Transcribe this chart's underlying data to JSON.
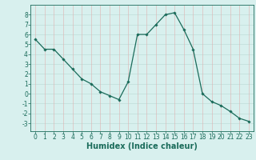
{
  "x": [
    0,
    1,
    2,
    3,
    4,
    5,
    6,
    7,
    8,
    9,
    10,
    11,
    12,
    13,
    14,
    15,
    16,
    17,
    18,
    19,
    20,
    21,
    22,
    23
  ],
  "y": [
    5.5,
    4.5,
    4.5,
    3.5,
    2.5,
    1.5,
    1.0,
    0.2,
    -0.2,
    -0.6,
    1.2,
    6.0,
    6.0,
    7.0,
    8.0,
    8.2,
    6.5,
    4.5,
    0.0,
    -0.8,
    -1.2,
    -1.8,
    -2.5,
    -2.8
  ],
  "line_color": "#1a6b5a",
  "marker": "D",
  "marker_size": 1.8,
  "bg_color": "#d8f0ee",
  "xlabel": "Humidex (Indice chaleur)",
  "xlabel_fontsize": 7,
  "xlabel_color": "#1a6b5a",
  "xtick_labels": [
    "0",
    "1",
    "2",
    "3",
    "4",
    "5",
    "6",
    "7",
    "8",
    "9",
    "10",
    "11",
    "12",
    "13",
    "14",
    "15",
    "16",
    "17",
    "18",
    "19",
    "20",
    "21",
    "22",
    "23"
  ],
  "ytick_labels": [
    "-3",
    "-2",
    "-1",
    "0",
    "1",
    "2",
    "3",
    "4",
    "5",
    "6",
    "7",
    "8"
  ],
  "ylim": [
    -3.8,
    9.0
  ],
  "xlim": [
    -0.5,
    23.5
  ],
  "tick_color": "#1a6b5a",
  "tick_fontsize": 5.5,
  "spine_color": "#1a6b5a",
  "linewidth": 0.9,
  "grid_h_color": "#b8d8d4",
  "grid_v_color": "#e0b0b0"
}
